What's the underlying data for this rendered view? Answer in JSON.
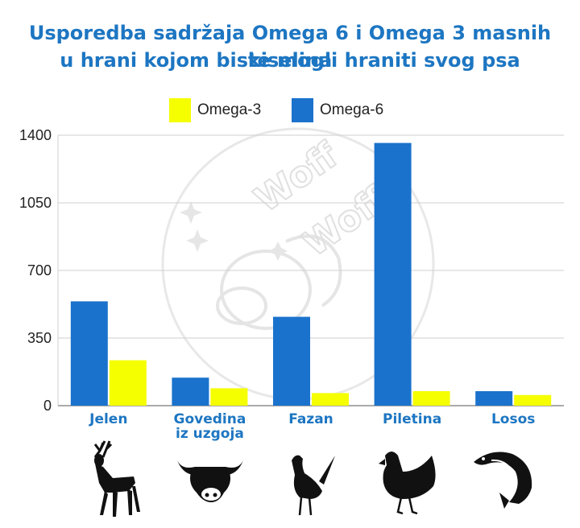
{
  "chart_data": {
    "type": "bar",
    "title_lines": [
      "Usporedba sadržaja Omega 6 i Omega 3 masnih kiselina",
      "u hrani kojom biste mogli hraniti svog psa"
    ],
    "categories": [
      [
        "Jelen"
      ],
      [
        "Govedina",
        "iz uzgoja"
      ],
      [
        "Fazan"
      ],
      [
        "Piletina"
      ],
      [
        "Losos"
      ]
    ],
    "series": [
      {
        "name": "Omega-6",
        "color": "#1a72cc",
        "values": [
          540,
          145,
          460,
          1360,
          75
        ]
      },
      {
        "name": "Omega-3",
        "color": "#f5ff00",
        "values": [
          235,
          90,
          65,
          75,
          55
        ]
      }
    ],
    "legend_order": [
      "Omega-3",
      "Omega-6"
    ],
    "yticks": [
      "1400",
      "1050",
      "700",
      "350",
      "0"
    ],
    "ylim": [
      0,
      1400
    ],
    "grid": true,
    "legend_position": "top-center",
    "category_label_color": "#1d76c2",
    "icons": [
      "deer-icon",
      "bull-icon",
      "pheasant-icon",
      "hen-icon",
      "salmon-icon"
    ],
    "watermark_text": [
      "Woff",
      "Woff"
    ]
  }
}
